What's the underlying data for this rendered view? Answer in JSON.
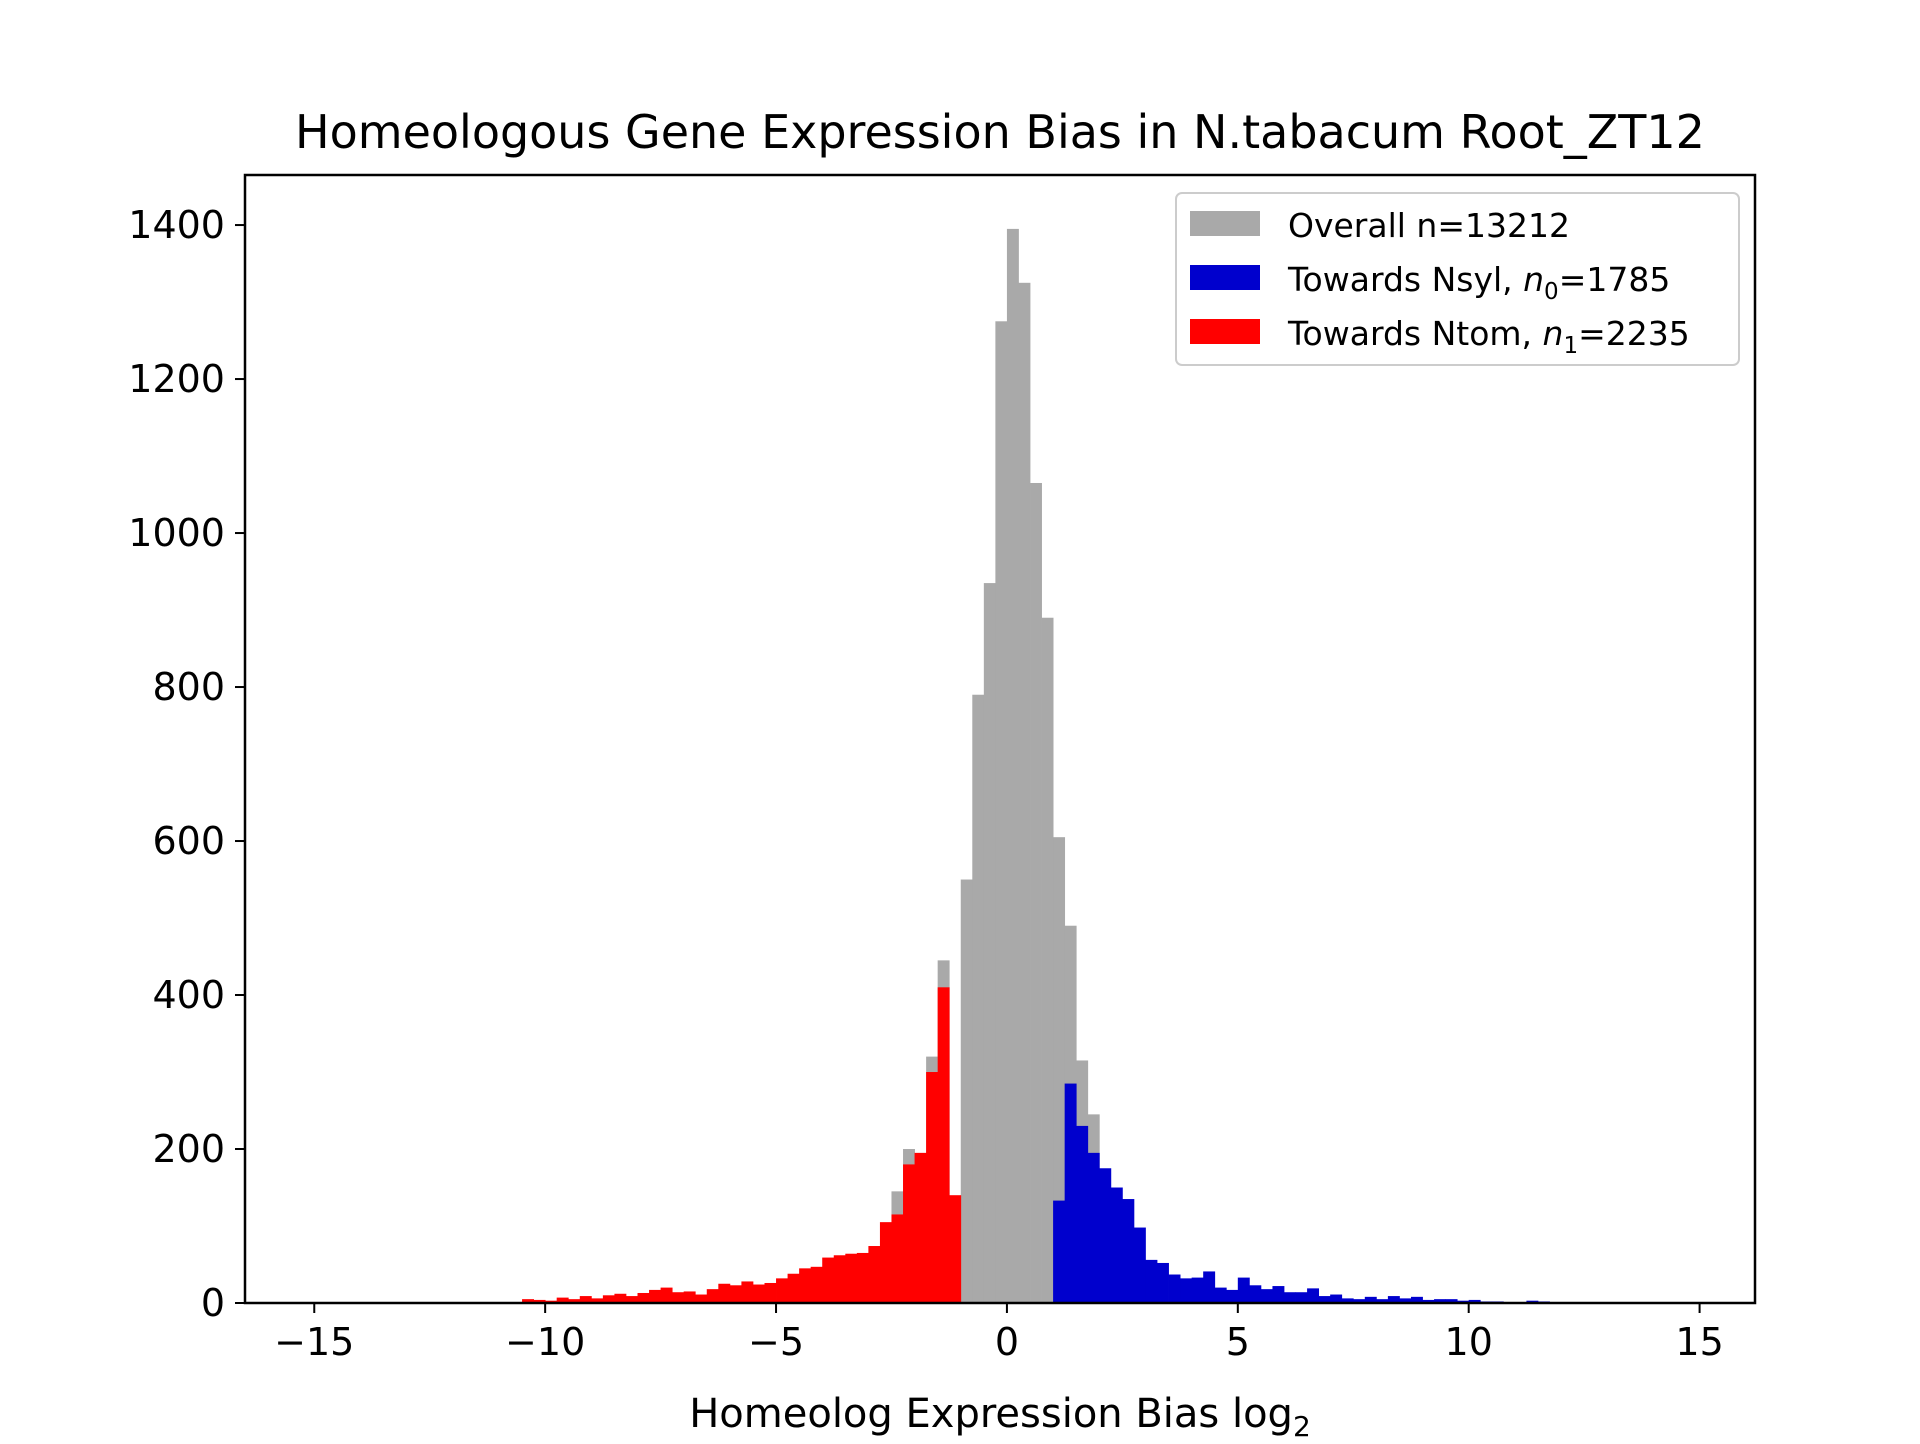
{
  "chart_data": {
    "type": "bar",
    "title": "Homeologous Gene Expression Bias in N.tabacum Root_ZT12",
    "xlabel": "Homeolog Expression Bias log",
    "xlabel_sub": "2",
    "ylabel": "",
    "xlim": [
      -16.5,
      16.2
    ],
    "ylim": [
      0,
      1465
    ],
    "x_ticks": [
      -15,
      -10,
      -5,
      0,
      5,
      10,
      15
    ],
    "x_tick_labels": [
      "−15",
      "−10",
      "−5",
      "0",
      "5",
      "10",
      "15"
    ],
    "y_ticks": [
      0,
      200,
      400,
      600,
      800,
      1000,
      1200,
      1400
    ],
    "y_tick_labels": [
      "0",
      "200",
      "400",
      "600",
      "800",
      "1000",
      "1200",
      "1400"
    ],
    "bin_width": 0.25,
    "grid": false,
    "legend_position": "top-right",
    "legend": [
      {
        "label": "Overall n=13212",
        "color": "#a9a9a9"
      },
      {
        "label_prefix": "Towards Nsyl, ",
        "var": "n",
        "sub": "0",
        "label_suffix": "=1785",
        "color": "#0000cd"
      },
      {
        "label_prefix": "Towards Ntom, ",
        "var": "n",
        "sub": "1",
        "label_suffix": "=2235",
        "color": "#ff0000"
      }
    ],
    "series": [
      {
        "name": "Overall n=13212",
        "color": "#a9a9a9",
        "bins": [
          [
            -1.0,
            550
          ],
          [
            -0.75,
            790
          ],
          [
            -0.5,
            935
          ],
          [
            -0.25,
            1275
          ],
          [
            0.0,
            1395
          ],
          [
            0.25,
            1325
          ],
          [
            0.5,
            1065
          ],
          [
            0.75,
            890
          ],
          [
            1.0,
            605
          ],
          [
            1.25,
            490
          ],
          [
            1.5,
            315
          ],
          [
            1.75,
            245
          ],
          [
            -1.75,
            320
          ],
          [
            -1.5,
            445
          ],
          [
            -2.25,
            200
          ],
          [
            -2.5,
            145
          ]
        ]
      },
      {
        "name": "Towards Ntom, n1=2235",
        "color": "#ff0000",
        "bins": [
          [
            -10.5,
            5
          ],
          [
            -10.25,
            4
          ],
          [
            -10.0,
            3
          ],
          [
            -9.75,
            7
          ],
          [
            -9.5,
            5
          ],
          [
            -9.25,
            9
          ],
          [
            -9.0,
            6
          ],
          [
            -8.75,
            10
          ],
          [
            -8.5,
            12
          ],
          [
            -8.25,
            9
          ],
          [
            -8.0,
            13
          ],
          [
            -7.75,
            17
          ],
          [
            -7.5,
            20
          ],
          [
            -7.25,
            14
          ],
          [
            -7.0,
            15
          ],
          [
            -6.75,
            11
          ],
          [
            -6.5,
            18
          ],
          [
            -6.25,
            25
          ],
          [
            -6.0,
            23
          ],
          [
            -5.75,
            28
          ],
          [
            -5.5,
            24
          ],
          [
            -5.25,
            26
          ],
          [
            -5.0,
            32
          ],
          [
            -4.75,
            38
          ],
          [
            -4.5,
            45
          ],
          [
            -4.25,
            47
          ],
          [
            -4.0,
            59
          ],
          [
            -3.75,
            62
          ],
          [
            -3.5,
            64
          ],
          [
            -3.25,
            65
          ],
          [
            -3.0,
            74
          ],
          [
            -2.75,
            105
          ],
          [
            -2.5,
            115
          ],
          [
            -2.25,
            180
          ],
          [
            -2.0,
            195
          ],
          [
            -1.75,
            300
          ],
          [
            -1.5,
            410
          ],
          [
            -1.25,
            140
          ]
        ]
      },
      {
        "name": "Towards Nsyl, n0=1785",
        "color": "#0000cd",
        "bins": [
          [
            1.0,
            133
          ],
          [
            1.25,
            285
          ],
          [
            1.5,
            230
          ],
          [
            1.75,
            195
          ],
          [
            2.0,
            175
          ],
          [
            2.25,
            150
          ],
          [
            2.5,
            135
          ],
          [
            2.75,
            98
          ],
          [
            3.0,
            56
          ],
          [
            3.25,
            52
          ],
          [
            3.5,
            37
          ],
          [
            3.75,
            32
          ],
          [
            4.0,
            33
          ],
          [
            4.25,
            41
          ],
          [
            4.5,
            20
          ],
          [
            4.75,
            17
          ],
          [
            5.0,
            33
          ],
          [
            5.25,
            23
          ],
          [
            5.5,
            18
          ],
          [
            5.75,
            22
          ],
          [
            6.0,
            14
          ],
          [
            6.25,
            14
          ],
          [
            6.5,
            19
          ],
          [
            6.75,
            9
          ],
          [
            7.0,
            11
          ],
          [
            7.25,
            6
          ],
          [
            7.5,
            5
          ],
          [
            7.75,
            8
          ],
          [
            8.0,
            5
          ],
          [
            8.25,
            9
          ],
          [
            8.5,
            6
          ],
          [
            8.75,
            8
          ],
          [
            9.0,
            4
          ],
          [
            9.25,
            5
          ],
          [
            9.5,
            5
          ],
          [
            9.75,
            3
          ],
          [
            10.0,
            4
          ],
          [
            10.25,
            2
          ],
          [
            10.5,
            2
          ],
          [
            11.25,
            3
          ],
          [
            11.5,
            2
          ]
        ]
      }
    ]
  }
}
